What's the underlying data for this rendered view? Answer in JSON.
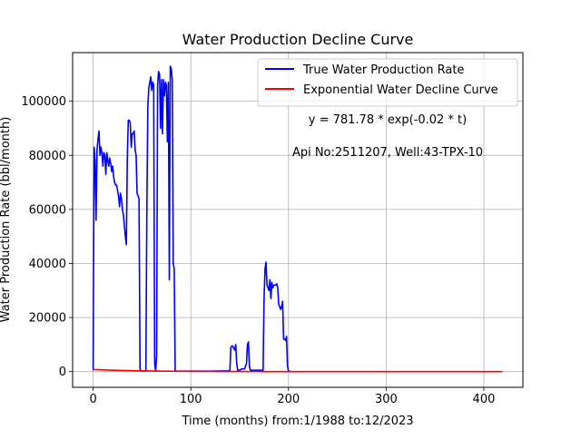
{
  "chart_data": {
    "type": "line",
    "title": "Water Production Decline Curve",
    "xlabel": "Time (months) from:1/1988 to:12/2023",
    "ylabel": "Water Production Rate (bbl/month)",
    "xlim": [
      -21,
      440
    ],
    "ylim": [
      -5800,
      118000
    ],
    "xticks": [
      0,
      100,
      200,
      300,
      400
    ],
    "yticks": [
      0,
      20000,
      40000,
      60000,
      80000,
      100000
    ],
    "grid": true,
    "legend_position": "top-right",
    "annotations": [
      "y = 781.78 * exp(-0.02 * t)",
      "Api No:2511207, Well:43-TPX-10"
    ],
    "series": [
      {
        "name": "True Water Production Rate",
        "color": "#0000ff",
        "points": [
          [
            0,
            500
          ],
          [
            1,
            83000
          ],
          [
            2,
            78000
          ],
          [
            3,
            56000
          ],
          [
            4,
            82000
          ],
          [
            5,
            86000
          ],
          [
            6,
            89000
          ],
          [
            7,
            80000
          ],
          [
            8,
            83000
          ],
          [
            9,
            81000
          ],
          [
            10,
            76000
          ],
          [
            11,
            81000
          ],
          [
            12,
            80000
          ],
          [
            13,
            73000
          ],
          [
            14,
            81000
          ],
          [
            15,
            78000
          ],
          [
            16,
            76000
          ],
          [
            17,
            79000
          ],
          [
            18,
            77000
          ],
          [
            19,
            74000
          ],
          [
            20,
            76000
          ],
          [
            21,
            72000
          ],
          [
            22,
            70000
          ],
          [
            23,
            69000
          ],
          [
            24,
            69000
          ],
          [
            25,
            67000
          ],
          [
            26,
            65000
          ],
          [
            27,
            61000
          ],
          [
            28,
            66000
          ],
          [
            29,
            64000
          ],
          [
            30,
            60000
          ],
          [
            31,
            58000
          ],
          [
            32,
            54000
          ],
          [
            33,
            50000
          ],
          [
            34,
            47000
          ],
          [
            35,
            79000
          ],
          [
            36,
            93000
          ],
          [
            37,
            93000
          ],
          [
            38,
            92000
          ],
          [
            39,
            83000
          ],
          [
            40,
            88000
          ],
          [
            41,
            88000
          ],
          [
            42,
            89000
          ],
          [
            43,
            82000
          ],
          [
            44,
            80000
          ],
          [
            45,
            66000
          ],
          [
            46,
            65000
          ],
          [
            47,
            64000
          ],
          [
            48,
            1000
          ],
          [
            49,
            300
          ],
          [
            50,
            200
          ],
          [
            51,
            200
          ],
          [
            52,
            200
          ],
          [
            53,
            200
          ],
          [
            54,
            200
          ],
          [
            55,
            60000
          ],
          [
            56,
            98000
          ],
          [
            57,
            105000
          ],
          [
            58,
            107000
          ],
          [
            59,
            109000
          ],
          [
            60,
            104000
          ],
          [
            61,
            107000
          ],
          [
            62,
            106000
          ],
          [
            63,
            3000
          ],
          [
            64,
            200
          ],
          [
            65,
            6000
          ],
          [
            66,
            106000
          ],
          [
            67,
            111000
          ],
          [
            68,
            110000
          ],
          [
            69,
            90000
          ],
          [
            70,
            108000
          ],
          [
            71,
            88000
          ],
          [
            72,
            108000
          ],
          [
            73,
            102000
          ],
          [
            74,
            107000
          ],
          [
            75,
            106000
          ],
          [
            76,
            85000
          ],
          [
            77,
            107000
          ],
          [
            78,
            34000
          ],
          [
            79,
            113000
          ],
          [
            80,
            112000
          ],
          [
            81,
            108000
          ],
          [
            82,
            40000
          ],
          [
            83,
            38000
          ],
          [
            84,
            500
          ],
          [
            85,
            200
          ],
          [
            100,
            200
          ],
          [
            120,
            200
          ],
          [
            140,
            300
          ],
          [
            141,
            9000
          ],
          [
            142,
            9500
          ],
          [
            143,
            9400
          ],
          [
            144,
            8500
          ],
          [
            145,
            8000
          ],
          [
            146,
            10000
          ],
          [
            147,
            3000
          ],
          [
            148,
            500
          ],
          [
            150,
            500
          ],
          [
            152,
            1000
          ],
          [
            155,
            1000
          ],
          [
            157,
            3000
          ],
          [
            158,
            10000
          ],
          [
            159,
            11000
          ],
          [
            160,
            2000
          ],
          [
            161,
            500
          ],
          [
            170,
            500
          ],
          [
            174,
            500
          ],
          [
            175,
            27000
          ],
          [
            176,
            38000
          ],
          [
            177,
            40500
          ],
          [
            178,
            32000
          ],
          [
            179,
            31000
          ],
          [
            180,
            30000
          ],
          [
            181,
            34000
          ],
          [
            182,
            27000
          ],
          [
            183,
            33000
          ],
          [
            184,
            31000
          ],
          [
            185,
            32000
          ],
          [
            186,
            32000
          ],
          [
            187,
            32000
          ],
          [
            188,
            32500
          ],
          [
            189,
            31000
          ],
          [
            190,
            25000
          ],
          [
            191,
            24000
          ],
          [
            192,
            23000
          ],
          [
            193,
            24000
          ],
          [
            194,
            26000
          ],
          [
            195,
            12000
          ],
          [
            196,
            12000
          ],
          [
            197,
            11500
          ],
          [
            198,
            13000
          ],
          [
            199,
            2000
          ],
          [
            200,
            200
          ],
          [
            202,
            100
          ]
        ]
      },
      {
        "name": "Exponential Water Decline Curve",
        "color": "#ff0000",
        "equation": {
          "a": 781.78,
          "b": 0.02
        },
        "x_range": [
          0,
          419
        ]
      }
    ]
  }
}
